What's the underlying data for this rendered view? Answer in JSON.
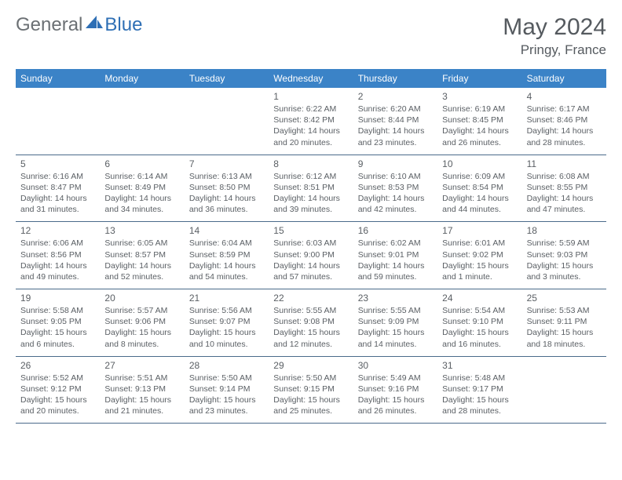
{
  "brand": {
    "part1": "General",
    "part2": "Blue"
  },
  "title": "May 2024",
  "location": "Pringy, France",
  "colors": {
    "header_bg": "#3b83c7",
    "text": "#5a5f64",
    "brand_gray": "#6b7074",
    "brand_blue": "#2e6fb5",
    "rule": "#4a6a8a"
  },
  "weekdays": [
    "Sunday",
    "Monday",
    "Tuesday",
    "Wednesday",
    "Thursday",
    "Friday",
    "Saturday"
  ],
  "weeks": [
    [
      null,
      null,
      null,
      {
        "n": "1",
        "sr": "6:22 AM",
        "ss": "8:42 PM",
        "dl": "14 hours and 20 minutes."
      },
      {
        "n": "2",
        "sr": "6:20 AM",
        "ss": "8:44 PM",
        "dl": "14 hours and 23 minutes."
      },
      {
        "n": "3",
        "sr": "6:19 AM",
        "ss": "8:45 PM",
        "dl": "14 hours and 26 minutes."
      },
      {
        "n": "4",
        "sr": "6:17 AM",
        "ss": "8:46 PM",
        "dl": "14 hours and 28 minutes."
      }
    ],
    [
      {
        "n": "5",
        "sr": "6:16 AM",
        "ss": "8:47 PM",
        "dl": "14 hours and 31 minutes."
      },
      {
        "n": "6",
        "sr": "6:14 AM",
        "ss": "8:49 PM",
        "dl": "14 hours and 34 minutes."
      },
      {
        "n": "7",
        "sr": "6:13 AM",
        "ss": "8:50 PM",
        "dl": "14 hours and 36 minutes."
      },
      {
        "n": "8",
        "sr": "6:12 AM",
        "ss": "8:51 PM",
        "dl": "14 hours and 39 minutes."
      },
      {
        "n": "9",
        "sr": "6:10 AM",
        "ss": "8:53 PM",
        "dl": "14 hours and 42 minutes."
      },
      {
        "n": "10",
        "sr": "6:09 AM",
        "ss": "8:54 PM",
        "dl": "14 hours and 44 minutes."
      },
      {
        "n": "11",
        "sr": "6:08 AM",
        "ss": "8:55 PM",
        "dl": "14 hours and 47 minutes."
      }
    ],
    [
      {
        "n": "12",
        "sr": "6:06 AM",
        "ss": "8:56 PM",
        "dl": "14 hours and 49 minutes."
      },
      {
        "n": "13",
        "sr": "6:05 AM",
        "ss": "8:57 PM",
        "dl": "14 hours and 52 minutes."
      },
      {
        "n": "14",
        "sr": "6:04 AM",
        "ss": "8:59 PM",
        "dl": "14 hours and 54 minutes."
      },
      {
        "n": "15",
        "sr": "6:03 AM",
        "ss": "9:00 PM",
        "dl": "14 hours and 57 minutes."
      },
      {
        "n": "16",
        "sr": "6:02 AM",
        "ss": "9:01 PM",
        "dl": "14 hours and 59 minutes."
      },
      {
        "n": "17",
        "sr": "6:01 AM",
        "ss": "9:02 PM",
        "dl": "15 hours and 1 minute."
      },
      {
        "n": "18",
        "sr": "5:59 AM",
        "ss": "9:03 PM",
        "dl": "15 hours and 3 minutes."
      }
    ],
    [
      {
        "n": "19",
        "sr": "5:58 AM",
        "ss": "9:05 PM",
        "dl": "15 hours and 6 minutes."
      },
      {
        "n": "20",
        "sr": "5:57 AM",
        "ss": "9:06 PM",
        "dl": "15 hours and 8 minutes."
      },
      {
        "n": "21",
        "sr": "5:56 AM",
        "ss": "9:07 PM",
        "dl": "15 hours and 10 minutes."
      },
      {
        "n": "22",
        "sr": "5:55 AM",
        "ss": "9:08 PM",
        "dl": "15 hours and 12 minutes."
      },
      {
        "n": "23",
        "sr": "5:55 AM",
        "ss": "9:09 PM",
        "dl": "15 hours and 14 minutes."
      },
      {
        "n": "24",
        "sr": "5:54 AM",
        "ss": "9:10 PM",
        "dl": "15 hours and 16 minutes."
      },
      {
        "n": "25",
        "sr": "5:53 AM",
        "ss": "9:11 PM",
        "dl": "15 hours and 18 minutes."
      }
    ],
    [
      {
        "n": "26",
        "sr": "5:52 AM",
        "ss": "9:12 PM",
        "dl": "15 hours and 20 minutes."
      },
      {
        "n": "27",
        "sr": "5:51 AM",
        "ss": "9:13 PM",
        "dl": "15 hours and 21 minutes."
      },
      {
        "n": "28",
        "sr": "5:50 AM",
        "ss": "9:14 PM",
        "dl": "15 hours and 23 minutes."
      },
      {
        "n": "29",
        "sr": "5:50 AM",
        "ss": "9:15 PM",
        "dl": "15 hours and 25 minutes."
      },
      {
        "n": "30",
        "sr": "5:49 AM",
        "ss": "9:16 PM",
        "dl": "15 hours and 26 minutes."
      },
      {
        "n": "31",
        "sr": "5:48 AM",
        "ss": "9:17 PM",
        "dl": "15 hours and 28 minutes."
      },
      null
    ]
  ],
  "labels": {
    "sunrise": "Sunrise:",
    "sunset": "Sunset:",
    "daylight": "Daylight:"
  }
}
